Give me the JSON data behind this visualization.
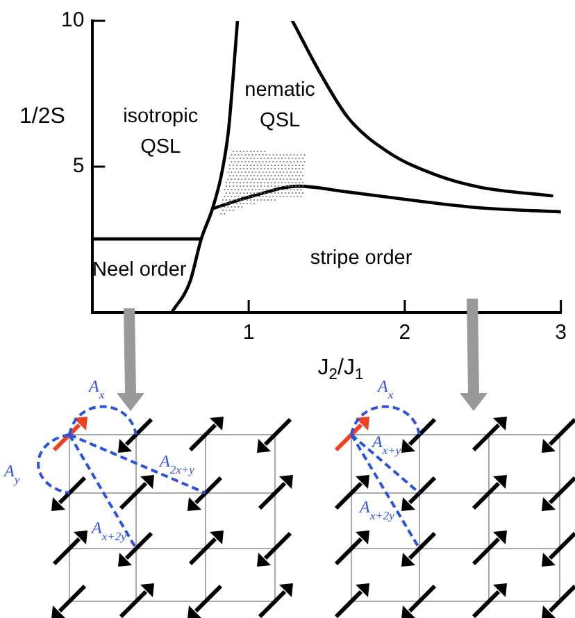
{
  "chart_data": {
    "type": "line",
    "xlabel": "J$_{2}$/J$_{1}$",
    "ylabel": "1/2S",
    "xlim": [
      0,
      3
    ],
    "xticks": [
      1,
      2,
      3
    ],
    "ylim": [
      0,
      10
    ],
    "yticks": [
      5,
      10
    ],
    "grid": false,
    "legend": false,
    "marker": "none",
    "series": [
      {
        "color": "#000000",
        "x": [
          0.507,
          0.623,
          0.696,
          0.768,
          0.826,
          0.87,
          0.899,
          0.928
        ],
        "values": [
          0,
          1.04,
          2.52,
          3.56,
          4.74,
          6.22,
          8.0,
          10
        ]
      },
      {
        "color": "#000000",
        "x": [
          0,
          0.696
        ],
        "values": [
          2.52,
          2.52
        ]
      },
      {
        "color": "#000000",
        "x": [
          0.768,
          1.029,
          1.319,
          1.609,
          2.043,
          2.478,
          3.0
        ],
        "values": [
          3.56,
          4.0,
          4.33,
          4.15,
          3.85,
          3.59,
          3.45
        ]
      },
      {
        "color": "#000000",
        "x": [
          1.28,
          1.464,
          1.638,
          1.899,
          2.188,
          2.478,
          2.942
        ],
        "values": [
          10,
          8.15,
          6.67,
          5.48,
          4.74,
          4.3,
          4.0
        ]
      }
    ],
    "annotations": [
      "isotropic\nQSL",
      "nematic\nQSL",
      "Neel order",
      "stripe order",
      "A$_{x}$",
      "A$_{y}$",
      "A$_{2x+y}$",
      "A$_{x+2y}$",
      "A$_{x}$",
      "A$_{x+y}$",
      "A$_{x+2y}$"
    ]
  }
}
